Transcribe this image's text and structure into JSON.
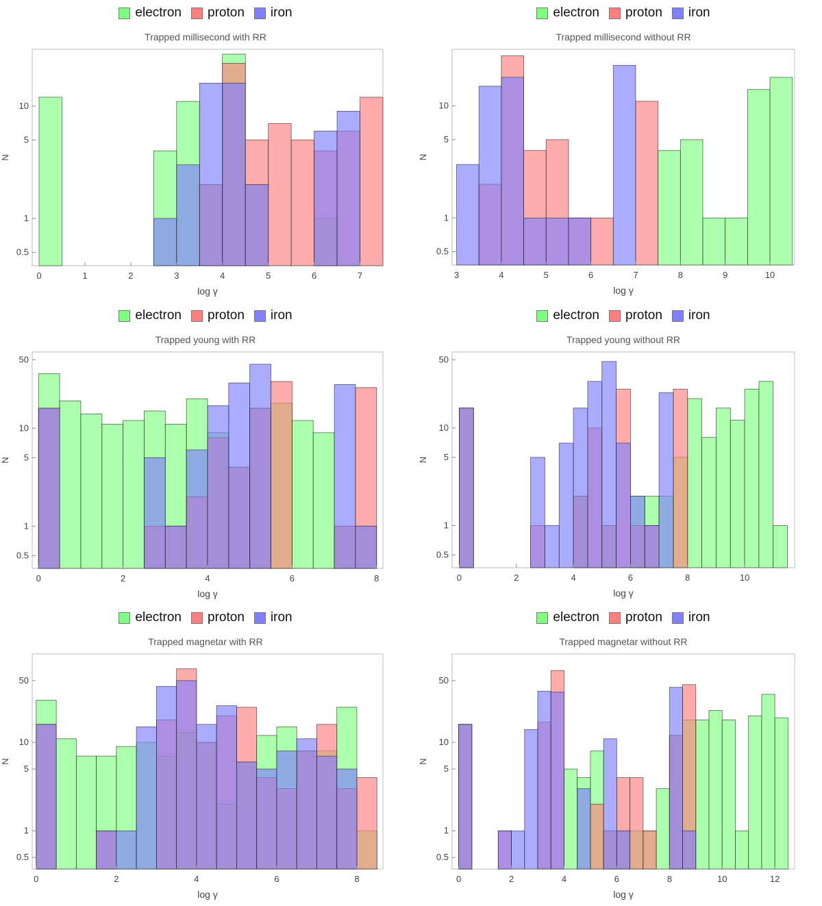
{
  "legend": {
    "electron": {
      "label": "electron",
      "color": "#7fff7f"
    },
    "proton": {
      "label": "proton",
      "color": "#ff8080"
    },
    "iron": {
      "label": "iron",
      "color": "#8080ff"
    }
  },
  "chart_data": [
    {
      "type": "bar",
      "title": "Trapped millisecond with RR",
      "xlabel": "log γ",
      "ylabel": "N",
      "yscale": "log",
      "xlim": [
        -0.15,
        7.5
      ],
      "ylim": [
        0.38,
        32
      ],
      "xticks": [
        "0",
        "1",
        "2",
        "3",
        "4",
        "5",
        "6",
        "7"
      ],
      "yticks": [
        "0.5",
        "1",
        "5",
        "10"
      ],
      "bin_width": 0.5,
      "series": [
        {
          "name": "electron",
          "bins": [
            [
              0,
              12
            ],
            [
              2.5,
              4
            ],
            [
              3,
              11
            ],
            [
              3.5,
              2
            ],
            [
              4,
              29
            ],
            [
              4.5,
              2
            ],
            [
              6,
              1
            ]
          ]
        },
        {
          "name": "proton",
          "bins": [
            [
              3.5,
              2
            ],
            [
              4,
              24
            ],
            [
              4.5,
              5
            ],
            [
              5,
              7
            ],
            [
              5.5,
              5
            ],
            [
              6,
              4
            ],
            [
              6.5,
              6
            ],
            [
              7,
              12
            ]
          ]
        },
        {
          "name": "iron",
          "bins": [
            [
              2.5,
              1
            ],
            [
              3,
              3
            ],
            [
              3.5,
              16
            ],
            [
              4,
              16
            ],
            [
              4.5,
              2
            ],
            [
              6,
              6
            ],
            [
              6.5,
              9
            ]
          ]
        }
      ]
    },
    {
      "type": "bar",
      "title": "Trapped millisecond without RR",
      "xlabel": "log γ",
      "ylabel": "N",
      "yscale": "log",
      "xlim": [
        2.9,
        10.55
      ],
      "ylim": [
        0.38,
        32
      ],
      "xticks": [
        "3",
        "4",
        "5",
        "6",
        "7",
        "8",
        "9",
        "10"
      ],
      "yticks": [
        "0.5",
        "1",
        "5",
        "10"
      ],
      "bin_width": 0.5,
      "series": [
        {
          "name": "electron",
          "bins": [
            [
              7.5,
              4
            ],
            [
              8,
              5
            ],
            [
              8.5,
              1
            ],
            [
              9,
              1
            ],
            [
              9.5,
              14
            ],
            [
              10,
              18
            ]
          ]
        },
        {
          "name": "proton",
          "bins": [
            [
              3.5,
              2
            ],
            [
              4,
              28
            ],
            [
              4.5,
              4
            ],
            [
              5,
              5
            ],
            [
              5.5,
              1
            ],
            [
              6,
              1
            ],
            [
              7,
              11
            ]
          ]
        },
        {
          "name": "iron",
          "bins": [
            [
              3,
              3
            ],
            [
              3.5,
              15
            ],
            [
              4,
              18
            ],
            [
              4.5,
              1
            ],
            [
              5,
              1
            ],
            [
              5.5,
              1
            ],
            [
              6.5,
              23
            ]
          ]
        }
      ]
    },
    {
      "type": "bar",
      "title": "Trapped young with RR",
      "xlabel": "log γ",
      "ylabel": "N",
      "yscale": "log",
      "xlim": [
        -0.15,
        8.15
      ],
      "ylim": [
        0.37,
        60
      ],
      "xticks": [
        "0",
        "2",
        "4",
        "6",
        "8"
      ],
      "yticks": [
        "0.5",
        "1",
        "5",
        "10",
        "50"
      ],
      "bin_width": 0.5,
      "series": [
        {
          "name": "electron",
          "bins": [
            [
              0,
              36
            ],
            [
              0.5,
              19
            ],
            [
              1,
              14
            ],
            [
              1.5,
              11
            ],
            [
              2,
              12
            ],
            [
              2.5,
              15
            ],
            [
              3,
              11
            ],
            [
              3.5,
              20
            ],
            [
              4,
              9
            ],
            [
              4.5,
              4
            ],
            [
              5,
              16
            ],
            [
              5.5,
              18
            ],
            [
              6,
              12
            ],
            [
              6.5,
              9
            ],
            [
              7,
              1
            ],
            [
              7.5,
              1
            ]
          ]
        },
        {
          "name": "proton",
          "bins": [
            [
              0,
              16
            ],
            [
              2.5,
              1
            ],
            [
              3,
              1
            ],
            [
              3.5,
              2
            ],
            [
              4,
              8
            ],
            [
              4.5,
              4
            ],
            [
              5,
              16
            ],
            [
              5.5,
              30
            ],
            [
              7,
              1
            ],
            [
              7.5,
              26
            ]
          ]
        },
        {
          "name": "iron",
          "bins": [
            [
              0,
              16
            ],
            [
              2.5,
              5
            ],
            [
              3,
              1
            ],
            [
              3.5,
              6
            ],
            [
              4,
              17
            ],
            [
              4.5,
              29
            ],
            [
              5,
              45
            ],
            [
              7,
              28
            ],
            [
              7.5,
              1
            ]
          ]
        }
      ]
    },
    {
      "type": "bar",
      "title": "Trapped young without RR",
      "xlabel": "log γ",
      "ylabel": "N",
      "yscale": "log",
      "xlim": [
        -0.25,
        11.75
      ],
      "ylim": [
        0.37,
        60
      ],
      "xticks": [
        "0",
        "2",
        "4",
        "6",
        "8",
        "10"
      ],
      "yticks": [
        "0.5",
        "1",
        "5",
        "10",
        "50"
      ],
      "bin_width": 0.5,
      "series": [
        {
          "name": "electron",
          "bins": [
            [
              0,
              16
            ],
            [
              4,
              2
            ],
            [
              5,
              1
            ],
            [
              6,
              2
            ],
            [
              6.5,
              2
            ],
            [
              7,
              2
            ],
            [
              7.5,
              5
            ],
            [
              8,
              20
            ],
            [
              8.5,
              8
            ],
            [
              9,
              16
            ],
            [
              9.5,
              12
            ],
            [
              10,
              25
            ],
            [
              10.5,
              30
            ],
            [
              11,
              1
            ]
          ]
        },
        {
          "name": "proton",
          "bins": [
            [
              0,
              16
            ],
            [
              2.5,
              1
            ],
            [
              4,
              2
            ],
            [
              4.5,
              10
            ],
            [
              5,
              1
            ],
            [
              5.5,
              25
            ],
            [
              6,
              1
            ],
            [
              6.5,
              1
            ],
            [
              7.5,
              25
            ]
          ]
        },
        {
          "name": "iron",
          "bins": [
            [
              0,
              16
            ],
            [
              2.5,
              5
            ],
            [
              3,
              1
            ],
            [
              3.5,
              7
            ],
            [
              4,
              16
            ],
            [
              4.5,
              30
            ],
            [
              5,
              48
            ],
            [
              5.5,
              7
            ],
            [
              6,
              2
            ],
            [
              6.5,
              1
            ],
            [
              7,
              23
            ]
          ]
        }
      ]
    },
    {
      "type": "bar",
      "title": "Trapped magnetar with RR",
      "xlabel": "log γ",
      "ylabel": "N",
      "yscale": "log",
      "xlim": [
        -0.1,
        8.65
      ],
      "ylim": [
        0.37,
        100
      ],
      "xticks": [
        "0",
        "2",
        "4",
        "6",
        "8"
      ],
      "yticks": [
        "0.5",
        "1",
        "5",
        "10",
        "50"
      ],
      "bin_width": 0.5,
      "series": [
        {
          "name": "electron",
          "bins": [
            [
              0,
              30
            ],
            [
              0.5,
              11
            ],
            [
              1,
              7
            ],
            [
              1.5,
              7
            ],
            [
              2,
              9
            ],
            [
              2.5,
              10
            ],
            [
              3,
              7
            ],
            [
              3.5,
              13
            ],
            [
              4,
              10
            ],
            [
              4.5,
              2
            ],
            [
              5,
              6
            ],
            [
              5.5,
              12
            ],
            [
              6,
              15
            ],
            [
              6.5,
              8
            ],
            [
              7,
              8
            ],
            [
              7.5,
              25
            ],
            [
              8,
              1
            ]
          ]
        },
        {
          "name": "proton",
          "bins": [
            [
              0,
              16
            ],
            [
              1.5,
              1
            ],
            [
              3,
              18
            ],
            [
              3.5,
              68
            ],
            [
              4,
              10
            ],
            [
              4.5,
              20
            ],
            [
              5,
              25
            ],
            [
              5.5,
              4
            ],
            [
              6,
              3
            ],
            [
              6.5,
              8
            ],
            [
              7,
              16
            ],
            [
              7.5,
              3
            ],
            [
              8,
              4
            ]
          ]
        },
        {
          "name": "iron",
          "bins": [
            [
              0,
              16
            ],
            [
              1.5,
              1
            ],
            [
              2,
              1
            ],
            [
              2.5,
              15
            ],
            [
              3,
              43
            ],
            [
              3.5,
              50
            ],
            [
              4,
              16
            ],
            [
              4.5,
              26
            ],
            [
              5,
              6
            ],
            [
              5.5,
              5
            ],
            [
              6,
              8
            ],
            [
              6.5,
              11
            ],
            [
              7,
              7
            ],
            [
              7.5,
              5
            ]
          ]
        }
      ]
    },
    {
      "type": "bar",
      "title": "Trapped magnetar without RR",
      "xlabel": "log γ",
      "ylabel": "N",
      "yscale": "log",
      "xlim": [
        -0.25,
        12.75
      ],
      "ylim": [
        0.37,
        100
      ],
      "xticks": [
        "0",
        "2",
        "4",
        "6",
        "8",
        "10",
        "12"
      ],
      "yticks": [
        "0.5",
        "1",
        "5",
        "10",
        "50"
      ],
      "bin_width": 0.5,
      "series": [
        {
          "name": "electron",
          "bins": [
            [
              0,
              16
            ],
            [
              4,
              5
            ],
            [
              4.5,
              4
            ],
            [
              5,
              8
            ],
            [
              5.5,
              1
            ],
            [
              6,
              1
            ],
            [
              6.5,
              1
            ],
            [
              7,
              1
            ],
            [
              7.5,
              3
            ],
            [
              8,
              12
            ],
            [
              8.5,
              18
            ],
            [
              9,
              18
            ],
            [
              9.5,
              23
            ],
            [
              10,
              18
            ],
            [
              10.5,
              1
            ],
            [
              11,
              20
            ],
            [
              11.5,
              35
            ],
            [
              12,
              19
            ]
          ]
        },
        {
          "name": "proton",
          "bins": [
            [
              0,
              16
            ],
            [
              1.5,
              1
            ],
            [
              3,
              17
            ],
            [
              3.5,
              65
            ],
            [
              5,
              2
            ],
            [
              5.5,
              1
            ],
            [
              6,
              4
            ],
            [
              6.5,
              4
            ],
            [
              7,
              1
            ],
            [
              8,
              12
            ],
            [
              8.5,
              45
            ]
          ]
        },
        {
          "name": "iron",
          "bins": [
            [
              0,
              16
            ],
            [
              1.5,
              1
            ],
            [
              2,
              1
            ],
            [
              2.5,
              14
            ],
            [
              3,
              38
            ],
            [
              3.5,
              37
            ],
            [
              4.5,
              3
            ],
            [
              5.5,
              11
            ],
            [
              6,
              1
            ],
            [
              8,
              42
            ],
            [
              8.5,
              1
            ]
          ]
        }
      ]
    }
  ]
}
